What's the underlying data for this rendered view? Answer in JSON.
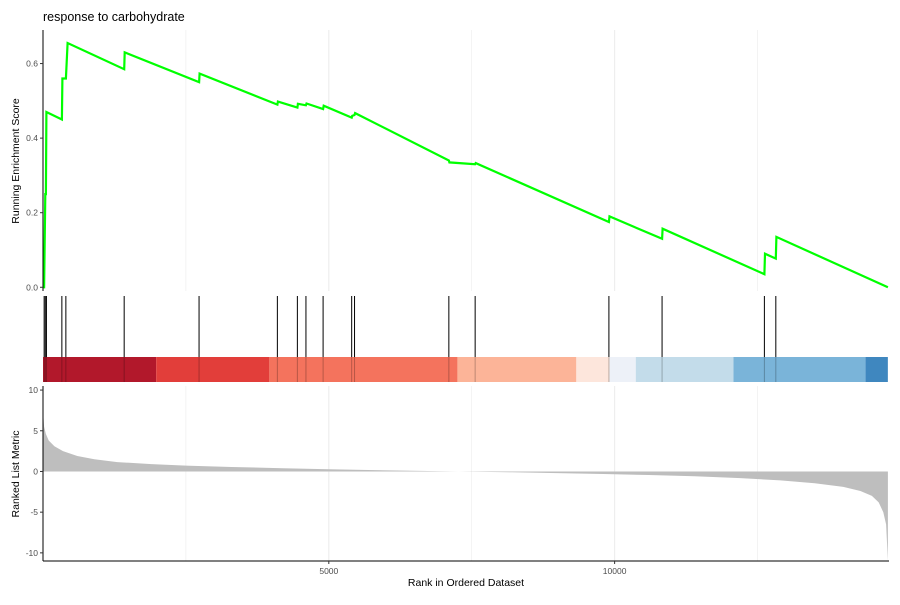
{
  "chart_data": {
    "type": "line",
    "title": "response to carbohydrate",
    "xlabel": "Rank in Ordered Dataset",
    "x_ticks": [
      5000,
      10000
    ],
    "xlim": [
      0,
      14800
    ],
    "panels": {
      "running_score": {
        "ylabel": "Running Enrichment Score",
        "ylim": [
          -0.01,
          0.69
        ],
        "y_ticks": [
          "0.0",
          "0.2",
          "0.4",
          "0.6"
        ],
        "line_color": "#00ff00",
        "points": [
          [
            0,
            0.0
          ],
          [
            20,
            0.0
          ],
          [
            40,
            0.25
          ],
          [
            50,
            0.25
          ],
          [
            60,
            0.47
          ],
          [
            330,
            0.45
          ],
          [
            340,
            0.56
          ],
          [
            400,
            0.56
          ],
          [
            430,
            0.655
          ],
          [
            1420,
            0.585
          ],
          [
            1430,
            0.63
          ],
          [
            2730,
            0.55
          ],
          [
            2740,
            0.573
          ],
          [
            4100,
            0.49
          ],
          [
            4110,
            0.498
          ],
          [
            4450,
            0.482
          ],
          [
            4460,
            0.492
          ],
          [
            4600,
            0.488
          ],
          [
            4610,
            0.493
          ],
          [
            4900,
            0.478
          ],
          [
            4910,
            0.487
          ],
          [
            5400,
            0.455
          ],
          [
            5410,
            0.46
          ],
          [
            5450,
            0.462
          ],
          [
            5460,
            0.467
          ],
          [
            7100,
            0.34
          ],
          [
            7110,
            0.335
          ],
          [
            7560,
            0.33
          ],
          [
            7570,
            0.333
          ],
          [
            9900,
            0.175
          ],
          [
            9910,
            0.19
          ],
          [
            10830,
            0.13
          ],
          [
            10840,
            0.157
          ],
          [
            12620,
            0.035
          ],
          [
            12630,
            0.09
          ],
          [
            12820,
            0.077
          ],
          [
            12830,
            0.135
          ],
          [
            14780,
            0.0
          ]
        ]
      },
      "gene_hits": {
        "positions": [
          20,
          40,
          60,
          330,
          400,
          1420,
          2730,
          4100,
          4450,
          4600,
          4900,
          5400,
          5450,
          7100,
          7560,
          9900,
          10830,
          12620,
          12820
        ]
      },
      "color_bar": {
        "segments": [
          {
            "start": 0,
            "end": 1980,
            "color": "#b2182b"
          },
          {
            "start": 1980,
            "end": 3960,
            "color": "#e23e3a"
          },
          {
            "start": 3960,
            "end": 7250,
            "color": "#f4735d"
          },
          {
            "start": 7250,
            "end": 9330,
            "color": "#fcb498"
          },
          {
            "start": 9330,
            "end": 9910,
            "color": "#fde6dc"
          },
          {
            "start": 9910,
            "end": 10370,
            "color": "#edf1f8"
          },
          {
            "start": 10370,
            "end": 12080,
            "color": "#c3dcea"
          },
          {
            "start": 12080,
            "end": 14390,
            "color": "#7ab4d9"
          },
          {
            "start": 14390,
            "end": 14780,
            "color": "#3f87bf"
          }
        ]
      },
      "ranked_metric": {
        "ylabel": "Ranked List Metric",
        "ylim": [
          -11,
          10.5
        ],
        "y_ticks": [
          10,
          5,
          0,
          -5,
          -10
        ],
        "fill_color": "#bebebe",
        "points": [
          [
            0,
            7.5
          ],
          [
            20,
            5.5
          ],
          [
            50,
            4.6
          ],
          [
            100,
            3.8
          ],
          [
            200,
            3.1
          ],
          [
            350,
            2.5
          ],
          [
            600,
            1.9
          ],
          [
            900,
            1.5
          ],
          [
            1300,
            1.15
          ],
          [
            1900,
            0.9
          ],
          [
            2500,
            0.72
          ],
          [
            3300,
            0.55
          ],
          [
            4200,
            0.4
          ],
          [
            5000,
            0.28
          ],
          [
            5800,
            0.17
          ],
          [
            6600,
            0.07
          ],
          [
            7400,
            -0.02
          ],
          [
            8200,
            -0.1
          ],
          [
            9000,
            -0.2
          ],
          [
            9800,
            -0.31
          ],
          [
            10600,
            -0.44
          ],
          [
            11400,
            -0.6
          ],
          [
            12200,
            -0.82
          ],
          [
            12900,
            -1.1
          ],
          [
            13500,
            -1.45
          ],
          [
            14000,
            -1.9
          ],
          [
            14300,
            -2.4
          ],
          [
            14500,
            -3.0
          ],
          [
            14620,
            -3.8
          ],
          [
            14700,
            -5.0
          ],
          [
            14750,
            -6.5
          ],
          [
            14780,
            -11.0
          ]
        ]
      }
    }
  }
}
